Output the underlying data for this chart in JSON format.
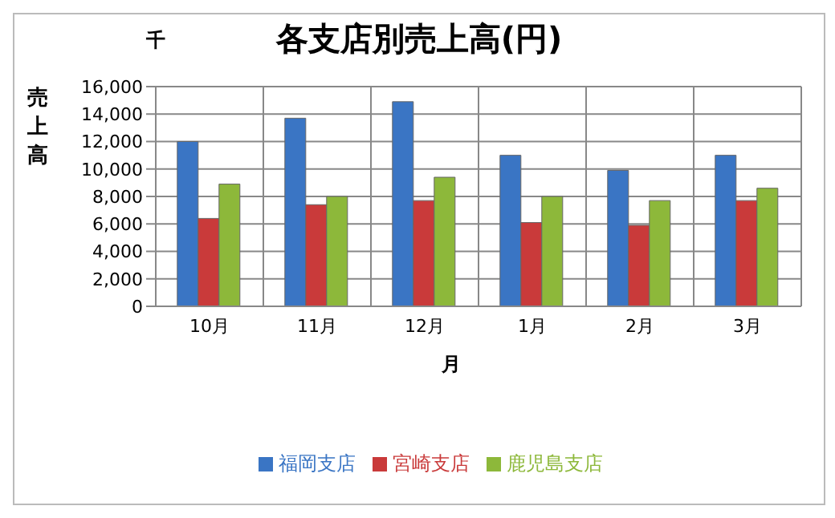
{
  "chart_data": {
    "type": "bar",
    "title": "各支店別売上高(円)",
    "xlabel": "月",
    "ylabel": "売上高",
    "annotations": [
      "千"
    ],
    "categories": [
      "10月",
      "11月",
      "12月",
      "1月",
      "2月",
      "3月"
    ],
    "series": [
      {
        "name": "福岡支店",
        "color": "#3a75c4",
        "values": [
          12000,
          13700,
          14900,
          11000,
          9900,
          11000
        ]
      },
      {
        "name": "宮崎支店",
        "color": "#c93a3a",
        "values": [
          6400,
          7400,
          7700,
          6100,
          5900,
          7700
        ]
      },
      {
        "name": "鹿児島支店",
        "color": "#8db83a",
        "values": [
          8900,
          8000,
          9400,
          8000,
          7700,
          8600
        ]
      }
    ],
    "ylim": [
      0,
      16000
    ],
    "yticks": [
      0,
      {
        "value": 2000,
        "label": "2,000"
      },
      {
        "value": 4000,
        "label": "4,000"
      },
      {
        "value": 6000,
        "label": "6,000"
      },
      {
        "value": 8000,
        "label": "8,000"
      },
      {
        "value": 10000,
        "label": "10,000"
      },
      {
        "value": 12000,
        "label": "12,000"
      },
      {
        "value": 14000,
        "label": "14,000"
      },
      {
        "value": 16000,
        "label": "16,000"
      }
    ],
    "grid": true,
    "legend": "bottom"
  }
}
